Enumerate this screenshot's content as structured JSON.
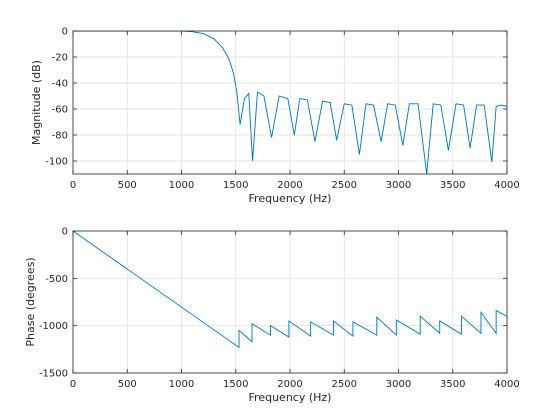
{
  "chart_data": [
    {
      "type": "line",
      "xlabel": "Frequency (Hz)",
      "ylabel": "Magnitude (dB)",
      "xlim": [
        0,
        4000
      ],
      "ylim": [
        -110,
        0
      ],
      "xticks": [
        0,
        500,
        1000,
        1500,
        2000,
        2500,
        3000,
        3500,
        4000
      ],
      "yticks": [
        0,
        -20,
        -40,
        -60,
        -80,
        -100
      ],
      "grid": true,
      "color": "#0072bd",
      "series": [
        {
          "x": [
            0,
            500,
            1000,
            1100,
            1200,
            1300,
            1380,
            1440,
            1480,
            1510,
            1540,
            1580,
            1620,
            1655,
            1700,
            1760,
            1830,
            1900,
            1980,
            2040,
            2090,
            2160,
            2230,
            2300,
            2370,
            2430,
            2500,
            2570,
            2640,
            2700,
            2770,
            2840,
            2900,
            2970,
            3040,
            3100,
            3180,
            3260,
            3320,
            3390,
            3460,
            3530,
            3600,
            3660,
            3720,
            3790,
            3860,
            3900,
            3950,
            4000
          ],
          "y": [
            0,
            0,
            0,
            -0.5,
            -2,
            -6,
            -13,
            -22,
            -33,
            -47,
            -72,
            -52,
            -48,
            -100,
            -47,
            -50,
            -82,
            -50,
            -52,
            -80,
            -52,
            -53,
            -85,
            -54,
            -55,
            -84,
            -56,
            -57,
            -95,
            -56,
            -57,
            -85,
            -56,
            -57,
            -88,
            -56,
            -56,
            -110,
            -56,
            -57,
            -92,
            -56,
            -57,
            -90,
            -57,
            -57,
            -101,
            -58,
            -57,
            -58
          ]
        }
      ]
    },
    {
      "type": "line",
      "xlabel": "Frequency (Hz)",
      "ylabel": "Phase (degrees)",
      "xlim": [
        0,
        4000
      ],
      "ylim": [
        -1500,
        0
      ],
      "xticks": [
        0,
        500,
        1000,
        1500,
        2000,
        2500,
        3000,
        3500,
        4000
      ],
      "yticks": [
        0,
        -500,
        -1000,
        -1500
      ],
      "grid": true,
      "color": "#0072bd",
      "series": [
        {
          "x": [
            0,
            1530,
            1530,
            1650,
            1650,
            1820,
            1820,
            1990,
            1990,
            2190,
            2190,
            2400,
            2400,
            2580,
            2580,
            2800,
            2800,
            2980,
            2980,
            3200,
            3200,
            3380,
            3380,
            3580,
            3580,
            3760,
            3760,
            3900,
            3900,
            4000
          ],
          "y": [
            0,
            -1230,
            -1050,
            -1170,
            -980,
            -1100,
            -1000,
            -1120,
            -950,
            -1110,
            -960,
            -1100,
            -950,
            -1110,
            -960,
            -1100,
            -910,
            -1100,
            -940,
            -1090,
            -900,
            -1080,
            -950,
            -1090,
            -900,
            -1080,
            -860,
            -1080,
            -840,
            -900
          ]
        }
      ]
    }
  ]
}
